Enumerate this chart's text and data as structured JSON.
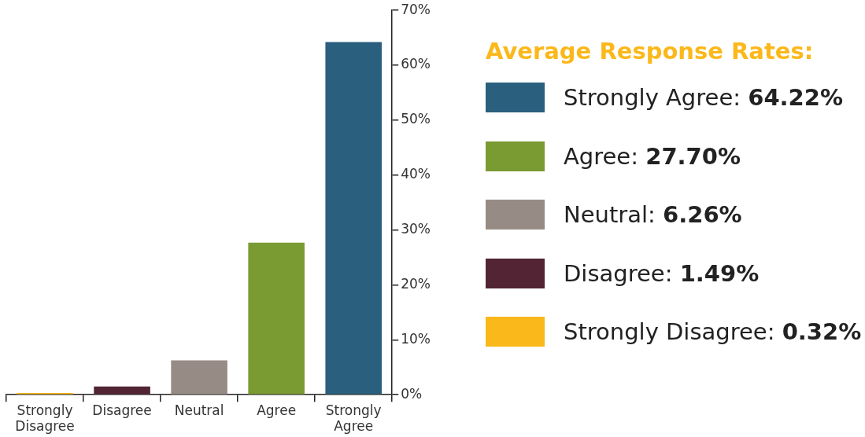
{
  "chart_data": {
    "type": "bar",
    "categories": [
      "Strongly Disagree",
      "Disagree",
      "Neutral",
      "Agree",
      "Strongly Agree"
    ],
    "values": [
      0.32,
      1.49,
      6.26,
      27.7,
      64.22
    ],
    "colors": [
      "#fbb81b",
      "#522434",
      "#978c85",
      "#7a9a32",
      "#2a5f7e"
    ],
    "annotations": [
      "Average Response Rates:",
      "Strongly Agree: 64.22%",
      "Agree: 27.70%",
      "Neutral: 6.26%",
      "Disagree: 1.49%",
      "Strongly Disagree: 0.32%"
    ],
    "ylim": [
      0,
      70
    ],
    "yticks": [
      {
        "value": 0,
        "label": "0%"
      },
      {
        "value": 10,
        "label": "10%"
      },
      {
        "value": 20,
        "label": "20%"
      },
      {
        "value": 30,
        "label": "30%"
      },
      {
        "value": 40,
        "label": "40%"
      },
      {
        "value": 50,
        "label": "50%"
      },
      {
        "value": 60,
        "label": "60%"
      },
      {
        "value": 70,
        "label": "70%"
      }
    ],
    "grid": false
  }
}
